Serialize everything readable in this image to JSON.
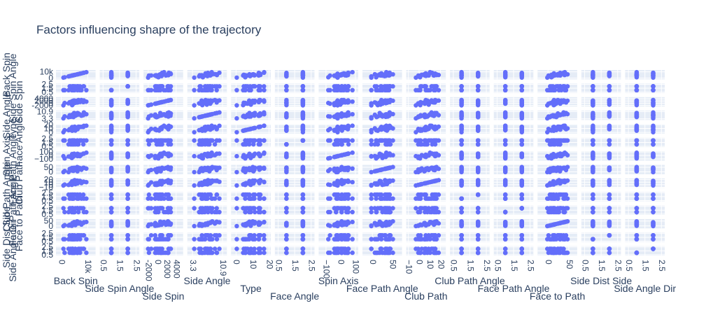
{
  "chart_data": {
    "type": "scatter",
    "subtype": "scatter-matrix",
    "title": "Factors influencing shapre of the trajectory",
    "marker_color": "#636efa",
    "grid": true,
    "background": "#e5ecf6",
    "dimensions": [
      {
        "label": "Back Spin",
        "range": [
          -2000,
          13000
        ],
        "ticks": [
          {
            "v": 0,
            "t": "0"
          },
          {
            "v": 10000,
            "t": "10k"
          }
        ],
        "kind": "cont",
        "min": 0,
        "max": 10000
      },
      {
        "label": "Side Spin Angle",
        "range": [
          0.3,
          2.7
        ],
        "ticks": [
          {
            "v": 0.5,
            "t": "0.5"
          },
          {
            "v": 1.5,
            "t": "1.5"
          },
          {
            "v": 2.5,
            "t": "2.5"
          }
        ],
        "kind": "cat",
        "levels": [
          1,
          2
        ]
      },
      {
        "label": "Side Spin",
        "range": [
          -3000,
          5500
        ],
        "ticks": [
          {
            "v": -2000,
            "t": "-2000"
          },
          {
            "v": 0,
            "t": "0"
          },
          {
            "v": 2000,
            "t": "2000"
          },
          {
            "v": 4000,
            "t": "4000"
          }
        ],
        "kind": "cont",
        "min": -2500,
        "max": 4500
      },
      {
        "label": "Side Angle",
        "range": [
          2.0,
          12.0
        ],
        "ticks": [
          {
            "v": 3.3,
            "t": "3.3"
          },
          {
            "v": 10.9,
            "t": "10.9"
          }
        ],
        "kind": "cont",
        "min": 3.3,
        "max": 10.9
      },
      {
        "label": "Type",
        "range": [
          -3,
          21
        ],
        "ticks": [
          {
            "v": 0,
            "t": "0"
          },
          {
            "v": 10,
            "t": "10"
          },
          {
            "v": 20,
            "t": "20"
          }
        ],
        "kind": "cont",
        "min": 0,
        "max": 18
      },
      {
        "label": "Face Angle",
        "range": [
          0.3,
          2.7
        ],
        "ticks": [
          {
            "v": 0.5,
            "t": "0.5"
          },
          {
            "v": 1.5,
            "t": "1.5"
          },
          {
            "v": 2.5,
            "t": "2.5"
          }
        ],
        "kind": "cat",
        "levels": [
          1,
          2
        ]
      },
      {
        "label": "Spin Axis",
        "range": [
          -150,
          120
        ],
        "ticks": [
          {
            "v": -100,
            "t": "−100"
          },
          {
            "v": 0,
            "t": "0"
          },
          {
            "v": 100,
            "t": "100"
          }
        ],
        "kind": "cont",
        "min": -110,
        "max": 90
      },
      {
        "label": "Face Path Angle",
        "range": [
          -25,
          75
        ],
        "ticks": [
          {
            "v": 0,
            "t": "0"
          },
          {
            "v": 50,
            "t": "50"
          }
        ],
        "kind": "cont",
        "min": -10,
        "max": 60
      },
      {
        "label": "Club Path",
        "range": [
          -12,
          25
        ],
        "ticks": [
          {
            "v": -10,
            "t": "−10"
          },
          {
            "v": 0,
            "t": "0"
          },
          {
            "v": 10,
            "t": "10"
          },
          {
            "v": 20,
            "t": "20"
          }
        ],
        "kind": "cont",
        "min": -5,
        "max": 20
      },
      {
        "label": "Club Path Angle",
        "range": [
          0.3,
          2.7
        ],
        "ticks": [
          {
            "v": 0.5,
            "t": "0.5"
          },
          {
            "v": 1.5,
            "t": "1.5"
          },
          {
            "v": 2.5,
            "t": "2.5"
          }
        ],
        "kind": "cat",
        "levels": [
          1,
          2
        ]
      },
      {
        "label": "Face Path Angle",
        "range": [
          0.3,
          2.7
        ],
        "ticks": [
          {
            "v": 0.5,
            "t": "0.5"
          },
          {
            "v": 1.5,
            "t": "1.5"
          },
          {
            "v": 2.5,
            "t": "2.5"
          }
        ],
        "kind": "cat",
        "levels": [
          1,
          2
        ]
      },
      {
        "label": "Face to Path",
        "range": [
          -25,
          70
        ],
        "ticks": [
          {
            "v": 0,
            "t": "0"
          },
          {
            "v": 50,
            "t": "50"
          }
        ],
        "kind": "cont",
        "min": -10,
        "max": 55
      },
      {
        "label": "Side Dist Side",
        "range": [
          0.3,
          2.7
        ],
        "ticks": [
          {
            "v": 0.5,
            "t": "0.5"
          },
          {
            "v": 1.5,
            "t": "1.5"
          },
          {
            "v": 2.5,
            "t": "2.5"
          }
        ],
        "kind": "cat",
        "levels": [
          1,
          2
        ]
      },
      {
        "label": "Side Angle Dir",
        "range": [
          0.3,
          2.7
        ],
        "ticks": [
          {
            "v": 0.5,
            "t": "0.5"
          },
          {
            "v": 1.5,
            "t": "1.5"
          },
          {
            "v": 2.5,
            "t": "2.5"
          }
        ],
        "kind": "cat",
        "levels": [
          1,
          2
        ]
      }
    ]
  }
}
